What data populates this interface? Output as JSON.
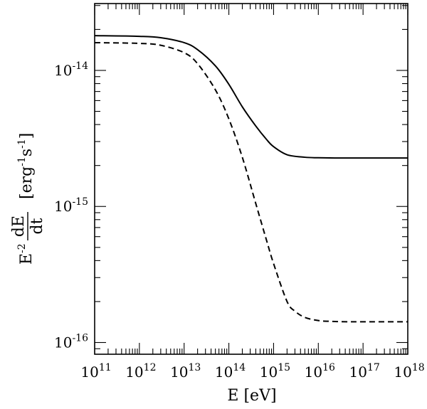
{
  "chart_data": {
    "type": "line",
    "xscale": "log",
    "yscale": "log",
    "xlim": [
      100000000000.0,
      1e+18
    ],
    "ylim": [
      8.2e-17,
      3.1e-14
    ],
    "grid": false,
    "xlabel": "E [eV]",
    "ylabel": {
      "prefix": "E",
      "prefix_sup": "-2",
      "frac_num": "dE",
      "frac_den": "dt",
      "units_open": "[erg",
      "units_sup1": "-1",
      "units_mid": "s",
      "units_sup2": "-1",
      "units_close": "]"
    },
    "x_ticks": [
      {
        "base": "10",
        "exp": "11",
        "value": 100000000000.0
      },
      {
        "base": "10",
        "exp": "12",
        "value": 1000000000000.0
      },
      {
        "base": "10",
        "exp": "13",
        "value": 10000000000000.0
      },
      {
        "base": "10",
        "exp": "14",
        "value": 100000000000000.0
      },
      {
        "base": "10",
        "exp": "15",
        "value": 1000000000000000.0
      },
      {
        "base": "10",
        "exp": "16",
        "value": 1e+16
      },
      {
        "base": "10",
        "exp": "17",
        "value": 1e+17
      },
      {
        "base": "10",
        "exp": "18",
        "value": 1e+18
      }
    ],
    "y_ticks": [
      {
        "base": "10",
        "exp": "-14",
        "value": 1e-14
      },
      {
        "base": "10",
        "exp": "-15",
        "value": 1e-15
      },
      {
        "base": "10",
        "exp": "-16",
        "value": 1e-16
      }
    ],
    "series": [
      {
        "style": "solid",
        "color": "#000000",
        "x": [
          100000000000.0,
          1000000000000.0,
          3000000000000.0,
          10000000000000.0,
          20000000000000.0,
          50000000000000.0,
          100000000000000.0,
          200000000000000.0,
          400000000000000.0,
          700000000000000.0,
          1000000000000000.0,
          2000000000000000.0,
          5000000000000000.0,
          1e+16,
          3e+16,
          1e+17,
          1e+18
        ],
        "y": [
          1.8e-14,
          1.78e-14,
          1.74e-14,
          1.6e-14,
          1.42e-14,
          1.08e-14,
          7.9e-15,
          5.4e-15,
          3.9e-15,
          3.1e-15,
          2.75e-15,
          2.4e-15,
          2.3e-15,
          2.28e-15,
          2.27e-15,
          2.27e-15,
          2.27e-15
        ]
      },
      {
        "style": "dashed",
        "color": "#000000",
        "x": [
          100000000000.0,
          1000000000000.0,
          3000000000000.0,
          10000000000000.0,
          20000000000000.0,
          50000000000000.0,
          100000000000000.0,
          200000000000000.0,
          400000000000000.0,
          700000000000000.0,
          1000000000000000.0,
          2000000000000000.0,
          3000000000000000.0,
          5000000000000000.0,
          1e+16,
          2e+16,
          5e+16,
          1e+17,
          1e+18
        ],
        "y": [
          1.6e-14,
          1.58e-14,
          1.53e-14,
          1.35e-14,
          1.12e-14,
          7.2e-15,
          4.4e-15,
          2.3e-15,
          1.05e-15,
          5.6e-16,
          3.8e-16,
          2e-16,
          1.7e-16,
          1.53e-16,
          1.45e-16,
          1.43e-16,
          1.42e-16,
          1.42e-16,
          1.42e-16
        ]
      }
    ]
  }
}
